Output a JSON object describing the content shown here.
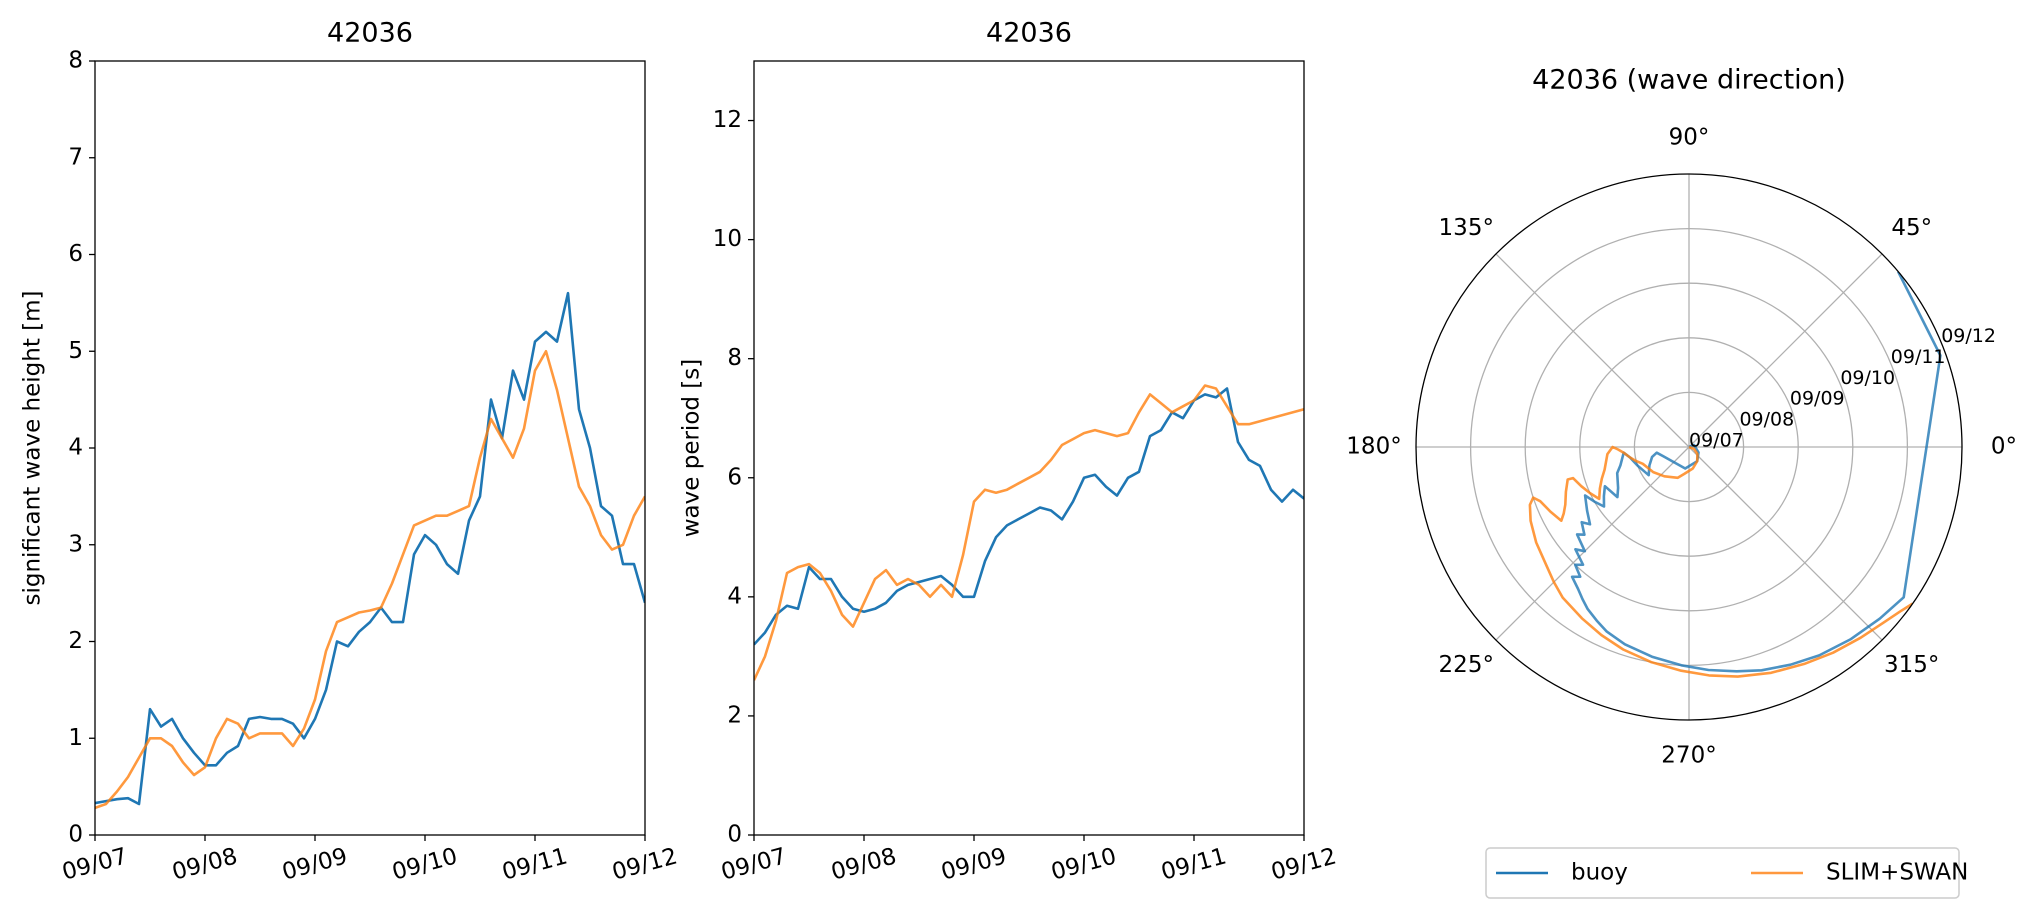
{
  "chart_data": [
    {
      "type": "line",
      "title": "42036",
      "ylabel": "significant wave height [m]",
      "x": [
        0,
        0.1,
        0.2,
        0.3,
        0.4,
        0.5,
        0.6,
        0.7,
        0.8,
        0.9,
        1,
        1.1,
        1.2,
        1.3,
        1.4,
        1.5,
        1.6,
        1.7,
        1.8,
        1.9,
        2,
        2.1,
        2.2,
        2.3,
        2.4,
        2.5,
        2.6,
        2.7,
        2.8,
        2.9,
        3,
        3.1,
        3.2,
        3.3,
        3.4,
        3.5,
        3.6,
        3.7,
        3.8,
        3.9,
        4,
        4.1,
        4.2,
        4.3,
        4.4,
        4.5,
        4.6,
        4.7,
        4.8,
        4.9,
        5
      ],
      "xlim": [
        0,
        5
      ],
      "xticks": [
        {
          "value": 0,
          "label": "09/07"
        },
        {
          "value": 1,
          "label": "09/08"
        },
        {
          "value": 2,
          "label": "09/09"
        },
        {
          "value": 3,
          "label": "09/10"
        },
        {
          "value": 4,
          "label": "09/11"
        },
        {
          "value": 5,
          "label": "09/12"
        }
      ],
      "ylim": [
        0,
        8
      ],
      "yticks": [
        0,
        1,
        2,
        3,
        4,
        5,
        6,
        7,
        8
      ],
      "series": [
        {
          "name": "buoy",
          "color": "#1f77b4",
          "values": [
            0.33,
            0.35,
            0.37,
            0.38,
            0.32,
            1.3,
            1.12,
            1.2,
            1.0,
            0.85,
            0.72,
            0.72,
            0.85,
            0.92,
            1.2,
            1.22,
            1.2,
            1.2,
            1.15,
            1.0,
            1.2,
            1.5,
            2.0,
            1.95,
            2.1,
            2.2,
            2.35,
            2.2,
            2.2,
            2.9,
            3.1,
            3.0,
            2.8,
            2.7,
            3.25,
            3.5,
            4.5,
            4.1,
            4.8,
            4.5,
            5.1,
            5.2,
            5.1,
            5.6,
            4.4,
            4.0,
            3.4,
            3.3,
            2.8,
            2.8,
            2.4
          ]
        },
        {
          "name": "SLIM+SWAN",
          "color": "#ff7f0e",
          "values": [
            0.28,
            0.32,
            0.45,
            0.6,
            0.8,
            1.0,
            1.0,
            0.92,
            0.75,
            0.62,
            0.7,
            1.0,
            1.2,
            1.15,
            1.0,
            1.05,
            1.05,
            1.05,
            0.92,
            1.1,
            1.4,
            1.9,
            2.2,
            2.25,
            2.3,
            2.32,
            2.35,
            2.6,
            2.9,
            3.2,
            3.25,
            3.3,
            3.3,
            3.35,
            3.4,
            3.9,
            4.3,
            4.1,
            3.9,
            4.2,
            4.8,
            5.0,
            4.6,
            4.1,
            3.6,
            3.4,
            3.1,
            2.95,
            3.0,
            3.3,
            3.5
          ]
        }
      ]
    },
    {
      "type": "line",
      "title": "42036",
      "ylabel": "wave period [s]",
      "x": [
        0,
        0.1,
        0.2,
        0.3,
        0.4,
        0.5,
        0.6,
        0.7,
        0.8,
        0.9,
        1,
        1.1,
        1.2,
        1.3,
        1.4,
        1.5,
        1.6,
        1.7,
        1.8,
        1.9,
        2,
        2.1,
        2.2,
        2.3,
        2.4,
        2.5,
        2.6,
        2.7,
        2.8,
        2.9,
        3,
        3.1,
        3.2,
        3.3,
        3.4,
        3.5,
        3.6,
        3.7,
        3.8,
        3.9,
        4,
        4.1,
        4.2,
        4.3,
        4.4,
        4.5,
        4.6,
        4.7,
        4.8,
        4.9,
        5
      ],
      "xlim": [
        0,
        5
      ],
      "xticks": [
        {
          "value": 0,
          "label": "09/07"
        },
        {
          "value": 1,
          "label": "09/08"
        },
        {
          "value": 2,
          "label": "09/09"
        },
        {
          "value": 3,
          "label": "09/10"
        },
        {
          "value": 4,
          "label": "09/11"
        },
        {
          "value": 5,
          "label": "09/12"
        }
      ],
      "ylim": [
        0,
        13
      ],
      "yticks": [
        0,
        2,
        4,
        6,
        8,
        10,
        12
      ],
      "series": [
        {
          "name": "buoy",
          "color": "#1f77b4",
          "values": [
            3.2,
            3.4,
            3.7,
            3.85,
            3.8,
            4.5,
            4.3,
            4.3,
            4.0,
            3.8,
            3.75,
            3.8,
            3.9,
            4.1,
            4.2,
            4.25,
            4.3,
            4.35,
            4.2,
            4.0,
            4.0,
            4.6,
            5.0,
            5.2,
            5.3,
            5.4,
            5.5,
            5.45,
            5.3,
            5.6,
            6.0,
            6.05,
            5.85,
            5.7,
            6.0,
            6.1,
            6.7,
            6.8,
            7.1,
            7.0,
            7.3,
            7.4,
            7.35,
            7.5,
            6.6,
            6.3,
            6.2,
            5.8,
            5.6,
            5.8,
            5.65
          ]
        },
        {
          "name": "SLIM+SWAN",
          "color": "#ff7f0e",
          "values": [
            2.6,
            3.0,
            3.6,
            4.4,
            4.5,
            4.55,
            4.4,
            4.1,
            3.7,
            3.5,
            3.9,
            4.3,
            4.45,
            4.2,
            4.3,
            4.2,
            4.0,
            4.2,
            4.0,
            4.7,
            5.6,
            5.8,
            5.75,
            5.8,
            5.9,
            6.0,
            6.1,
            6.3,
            6.55,
            6.65,
            6.75,
            6.8,
            6.75,
            6.7,
            6.75,
            7.1,
            7.4,
            7.25,
            7.1,
            7.2,
            7.3,
            7.55,
            7.5,
            7.2,
            6.9,
            6.9,
            6.95,
            7.0,
            7.05,
            7.1,
            7.15
          ]
        }
      ]
    },
    {
      "type": "polar",
      "title": "42036 (wave direction)",
      "x": [
        0,
        0.1,
        0.2,
        0.3,
        0.4,
        0.5,
        0.6,
        0.7,
        0.8,
        0.9,
        1,
        1.1,
        1.2,
        1.3,
        1.4,
        1.5,
        1.6,
        1.7,
        1.8,
        1.9,
        2,
        2.1,
        2.2,
        2.3,
        2.4,
        2.5,
        2.6,
        2.7,
        2.8,
        2.9,
        3,
        3.1,
        3.2,
        3.3,
        3.4,
        3.5,
        3.6,
        3.7,
        3.8,
        3.9,
        4,
        4.1,
        4.2,
        4.3,
        4.4,
        4.5,
        4.6,
        4.7,
        4.8,
        4.9,
        5
      ],
      "xlim": [
        0,
        5
      ],
      "xticks": [
        {
          "value": 0,
          "label": "09/07"
        },
        {
          "value": 1,
          "label": "09/08"
        },
        {
          "value": 2,
          "label": "09/09"
        },
        {
          "value": 3,
          "label": "09/10"
        },
        {
          "value": 4,
          "label": "09/11"
        },
        {
          "value": 5,
          "label": "09/12"
        }
      ],
      "thetaticks": [
        {
          "value": 0,
          "label": "0°"
        },
        {
          "value": 45,
          "label": "45°"
        },
        {
          "value": 90,
          "label": "90°"
        },
        {
          "value": 135,
          "label": "135°"
        },
        {
          "value": 180,
          "label": "180°"
        },
        {
          "value": 225,
          "label": "225°"
        },
        {
          "value": 270,
          "label": "270°"
        },
        {
          "value": 315,
          "label": "315°"
        }
      ],
      "series": [
        {
          "name": "buoy",
          "color": "#1f77b4",
          "values": [
            0,
            20,
            330,
            300,
            260,
            200,
            190,
            195,
            205,
            215,
            200,
            190,
            185,
            195,
            200,
            210,
            215,
            205,
            210,
            215,
            210,
            205,
            212,
            218,
            215,
            220,
            218,
            225,
            222,
            228,
            226,
            230,
            228,
            232,
            235,
            238,
            242,
            246,
            252,
            260,
            268,
            275,
            282,
            288,
            295,
            302,
            310,
            318,
            325,
            20,
            40
          ]
        },
        {
          "name": "SLIM+SWAN",
          "color": "#ff7f0e",
          "values": [
            0,
            340,
            320,
            300,
            280,
            260,
            250,
            230,
            215,
            200,
            195,
            190,
            185,
            182,
            180,
            185,
            195,
            200,
            205,
            210,
            205,
            200,
            195,
            195,
            200,
            205,
            208,
            210,
            205,
            200,
            198,
            200,
            205,
            212,
            220,
            225,
            230,
            238,
            245,
            252,
            260,
            268,
            275,
            282,
            290,
            298,
            305,
            312,
            318,
            322,
            325
          ]
        }
      ]
    }
  ]
}
